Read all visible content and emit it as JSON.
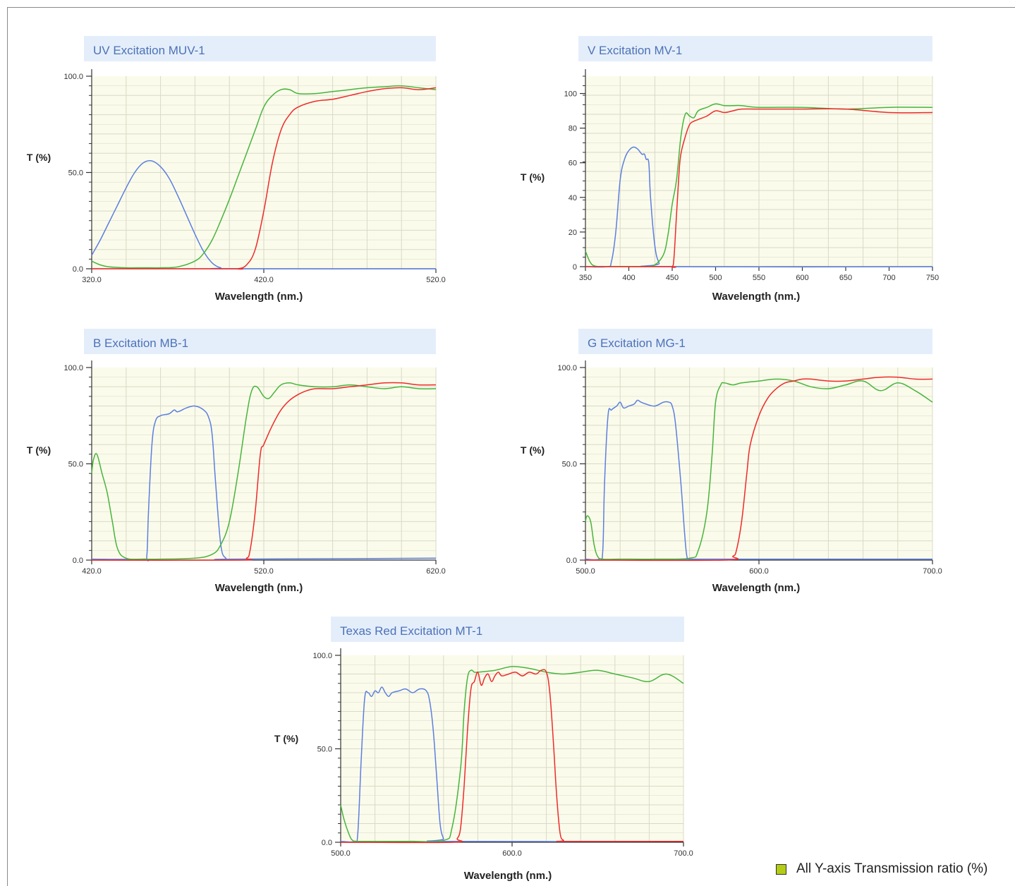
{
  "colors": {
    "blue": "#5b7fe0",
    "green": "#46b53c",
    "red": "#ee2a2a",
    "plot_bg": "#fbfbeb",
    "title_bg": "#e4eefb",
    "title_text": "#4d72b6",
    "grid": "#d9d9c8",
    "axis": "#333333"
  },
  "legend_note": "All Y-axis Transmission ratio (%)",
  "chart_data": [
    {
      "id": "muv",
      "type": "line",
      "title": "UV Excitation MUV-1",
      "xlabel": "Wavelength (nm.)",
      "ylabel": "T (%)",
      "xlim": [
        320,
        520
      ],
      "ylim": [
        0,
        100
      ],
      "xticks": [
        "320.0",
        "420.0",
        "520.0"
      ],
      "xtick_values": [
        320,
        420,
        520
      ],
      "yticks": [
        "0.0",
        "50.0",
        "100.0"
      ],
      "ytick_values": [
        0,
        50,
        100
      ],
      "grid": true,
      "series": [
        {
          "color": "blue",
          "x": [
            320,
            325,
            330,
            335,
            340,
            345,
            350,
            355,
            360,
            365,
            370,
            375,
            380,
            385,
            390,
            395,
            400,
            520
          ],
          "y": [
            7,
            15,
            24,
            33,
            42,
            50,
            55,
            56,
            53,
            47,
            38,
            28,
            18,
            9,
            3,
            0.5,
            0,
            0
          ]
        },
        {
          "color": "green",
          "x": [
            320,
            325,
            330,
            340,
            350,
            360,
            370,
            380,
            385,
            390,
            395,
            400,
            405,
            410,
            415,
            420,
            425,
            430,
            435,
            440,
            450,
            460,
            470,
            480,
            490,
            500,
            510,
            520
          ],
          "y": [
            4,
            2,
            1,
            0.5,
            0.5,
            0.5,
            1,
            4,
            8,
            15,
            25,
            36,
            48,
            60,
            72,
            84,
            90,
            93,
            93,
            91,
            91,
            92,
            93,
            94,
            94.5,
            95,
            94,
            93
          ]
        },
        {
          "color": "red",
          "x": [
            320,
            400,
            405,
            410,
            415,
            420,
            425,
            430,
            435,
            440,
            450,
            460,
            470,
            480,
            490,
            500,
            510,
            520
          ],
          "y": [
            0,
            0,
            0,
            2,
            10,
            30,
            55,
            72,
            80,
            84,
            87,
            88,
            90,
            92,
            93.5,
            94,
            93,
            94
          ]
        }
      ]
    },
    {
      "id": "mv",
      "type": "line",
      "title": "V Excitation MV-1",
      "xlabel": "Wavelength (nm.)",
      "ylabel": "T (%)",
      "xlim": [
        350,
        750
      ],
      "ylim": [
        0,
        110
      ],
      "xticks": [
        "350",
        "400",
        "450",
        "500",
        "550",
        "600",
        "650",
        "700",
        "750"
      ],
      "xtick_values": [
        350,
        400,
        450,
        500,
        550,
        600,
        650,
        700,
        750
      ],
      "yticks": [
        "0",
        "20",
        "40",
        "60",
        "80",
        "100"
      ],
      "ytick_values": [
        0,
        20,
        40,
        60,
        80,
        100
      ],
      "grid": true,
      "series": [
        {
          "color": "blue",
          "x": [
            350,
            375,
            380,
            385,
            390,
            395,
            400,
            405,
            410,
            415,
            418,
            420,
            423,
            425,
            430,
            435,
            440,
            750
          ],
          "y": [
            0,
            0,
            3,
            20,
            50,
            62,
            67,
            69,
            68,
            65,
            65,
            62,
            60,
            40,
            12,
            2,
            0,
            0
          ]
        },
        {
          "color": "green",
          "x": [
            350,
            355,
            360,
            370,
            380,
            400,
            420,
            430,
            440,
            445,
            450,
            455,
            460,
            465,
            470,
            475,
            480,
            490,
            500,
            510,
            520,
            530,
            550,
            600,
            650,
            700,
            750
          ],
          "y": [
            9,
            3,
            0.5,
            0,
            0,
            0,
            0,
            1,
            7,
            18,
            36,
            50,
            75,
            88,
            87,
            86,
            90,
            92,
            94,
            93,
            93,
            93,
            92,
            92,
            91,
            92,
            92
          ]
        },
        {
          "color": "red",
          "x": [
            350,
            445,
            450,
            452,
            455,
            458,
            460,
            465,
            470,
            475,
            480,
            490,
            500,
            510,
            520,
            530,
            550,
            600,
            650,
            700,
            750
          ],
          "y": [
            0,
            0,
            0,
            5,
            30,
            55,
            65,
            75,
            82,
            84,
            85,
            87,
            90,
            89,
            90,
            91,
            91,
            91,
            91,
            89,
            89
          ]
        }
      ]
    },
    {
      "id": "mb",
      "type": "line",
      "title": "B Excitation MB-1",
      "xlabel": "Wavelength (nm.)",
      "ylabel": "T (%)",
      "xlim": [
        420,
        620
      ],
      "ylim": [
        0,
        100
      ],
      "xticks": [
        "420.0",
        "520.0",
        "620.0"
      ],
      "xtick_values": [
        420,
        520,
        620
      ],
      "yticks": [
        "0.0",
        "50.0",
        "100.0"
      ],
      "ytick_values": [
        0,
        50,
        100
      ],
      "grid": true,
      "series": [
        {
          "color": "blue",
          "x": [
            420,
            450,
            452,
            453,
            455,
            457,
            460,
            465,
            468,
            470,
            475,
            480,
            485,
            488,
            490,
            492,
            495,
            498,
            502,
            620
          ],
          "y": [
            0.5,
            0.5,
            2,
            25,
            60,
            72,
            75,
            76,
            78,
            77,
            79,
            80,
            78,
            74,
            65,
            40,
            8,
            1,
            0.5,
            1
          ]
        },
        {
          "color": "green",
          "x": [
            420,
            421,
            423,
            426,
            429,
            432,
            435,
            440,
            450,
            460,
            480,
            490,
            495,
            500,
            505,
            510,
            513,
            516,
            520,
            523,
            526,
            530,
            535,
            540,
            550,
            560,
            570,
            580,
            590,
            600,
            610,
            620
          ],
          "y": [
            45,
            52,
            55,
            45,
            35,
            20,
            6,
            1,
            0.5,
            0.5,
            1,
            3,
            8,
            20,
            45,
            75,
            88,
            90,
            85,
            84,
            87,
            91,
            92,
            91,
            90,
            90,
            91,
            90,
            89,
            90,
            89,
            89
          ]
        },
        {
          "color": "red",
          "x": [
            420,
            505,
            510,
            512,
            515,
            518,
            520,
            525,
            530,
            535,
            540,
            545,
            550,
            560,
            570,
            580,
            590,
            600,
            610,
            620
          ],
          "y": [
            0,
            0,
            1,
            5,
            25,
            55,
            60,
            70,
            78,
            83,
            86,
            88,
            89,
            89,
            90,
            91,
            92,
            92,
            91,
            91
          ]
        }
      ]
    },
    {
      "id": "mg",
      "type": "line",
      "title": "G Excitation MG-1",
      "xlabel": "Wavelength (nm.)",
      "ylabel": "T (%)",
      "xlim": [
        500,
        700
      ],
      "ylim": [
        0,
        100
      ],
      "xticks": [
        "500.0",
        "600.0",
        "700.0"
      ],
      "xtick_values": [
        500,
        600,
        700
      ],
      "yticks": [
        "0.0",
        "50.0",
        "100.0"
      ],
      "ytick_values": [
        0,
        50,
        100
      ],
      "grid": true,
      "series": [
        {
          "color": "blue",
          "x": [
            500,
            508,
            510,
            511,
            513,
            515,
            518,
            520,
            522,
            525,
            528,
            530,
            532,
            535,
            540,
            545,
            548,
            550,
            552,
            555,
            558,
            560,
            562,
            700
          ],
          "y": [
            0.5,
            0.5,
            5,
            40,
            75,
            78,
            80,
            82,
            79,
            80,
            81,
            83,
            82,
            81,
            80,
            82,
            82,
            80,
            70,
            40,
            5,
            0.5,
            0.5,
            0.5
          ]
        },
        {
          "color": "green",
          "x": [
            500,
            501,
            503,
            505,
            507,
            510,
            520,
            540,
            560,
            565,
            570,
            573,
            575,
            578,
            580,
            585,
            590,
            600,
            610,
            620,
            630,
            640,
            650,
            660,
            670,
            680,
            690,
            700
          ],
          "y": [
            20,
            23,
            20,
            8,
            2,
            0.5,
            0.5,
            0.5,
            1,
            5,
            25,
            55,
            82,
            91,
            92,
            91,
            92,
            93,
            94,
            93,
            90,
            89,
            91,
            93,
            88,
            92,
            88,
            82
          ]
        },
        {
          "color": "red",
          "x": [
            500,
            580,
            585,
            587,
            590,
            593,
            595,
            600,
            605,
            610,
            615,
            620,
            625,
            630,
            640,
            650,
            660,
            670,
            680,
            690,
            700
          ],
          "y": [
            0,
            0,
            2,
            5,
            20,
            45,
            60,
            75,
            84,
            89,
            92,
            93,
            94,
            94,
            93,
            93,
            94,
            95,
            95,
            94,
            94
          ]
        }
      ]
    },
    {
      "id": "mt",
      "type": "line",
      "title": "Texas Red Excitation MT-1",
      "xlabel": "Wavelength (nm.)",
      "ylabel": "T (%)",
      "xlim": [
        500,
        700
      ],
      "ylim": [
        0,
        100
      ],
      "xticks": [
        "500.0",
        "600.0",
        "700.0"
      ],
      "xtick_values": [
        500,
        600,
        700
      ],
      "yticks": [
        "0.0",
        "50.0",
        "100.0"
      ],
      "ytick_values": [
        0,
        50,
        100
      ],
      "grid": true,
      "series": [
        {
          "color": "blue",
          "x": [
            500,
            508,
            510,
            512,
            514,
            516,
            518,
            520,
            522,
            524,
            526,
            528,
            530,
            534,
            538,
            542,
            546,
            550,
            552,
            554,
            556,
            558,
            560,
            562,
            700
          ],
          "y": [
            0.5,
            0.5,
            5,
            45,
            77,
            80,
            78,
            81,
            80,
            83,
            80,
            78,
            80,
            81,
            82,
            80,
            82,
            81,
            75,
            60,
            35,
            10,
            2,
            0.5,
            0.5
          ]
        },
        {
          "color": "green",
          "x": [
            500,
            502,
            505,
            507,
            510,
            520,
            540,
            560,
            565,
            570,
            572,
            574,
            576,
            578,
            580,
            590,
            600,
            610,
            620,
            630,
            640,
            650,
            660,
            670,
            680,
            690,
            700
          ],
          "y": [
            20,
            12,
            4,
            1,
            0.5,
            0.5,
            0.5,
            1,
            8,
            40,
            70,
            88,
            92,
            91,
            91,
            92,
            94,
            93,
            91,
            90,
            91,
            92,
            90,
            88,
            86,
            90,
            85
          ]
        },
        {
          "color": "red",
          "x": [
            500,
            565,
            568,
            570,
            572,
            574,
            576,
            578,
            580,
            582,
            584,
            586,
            588,
            590,
            592,
            594,
            598,
            602,
            606,
            610,
            614,
            617,
            620,
            622,
            624,
            626,
            628,
            630,
            632,
            700
          ],
          "y": [
            0,
            0,
            2,
            8,
            30,
            60,
            82,
            86,
            91,
            84,
            88,
            90,
            86,
            89,
            91,
            89,
            90,
            91,
            89,
            91,
            90,
            92,
            91,
            80,
            55,
            25,
            5,
            1,
            0.5,
            0.5
          ]
        }
      ]
    }
  ]
}
